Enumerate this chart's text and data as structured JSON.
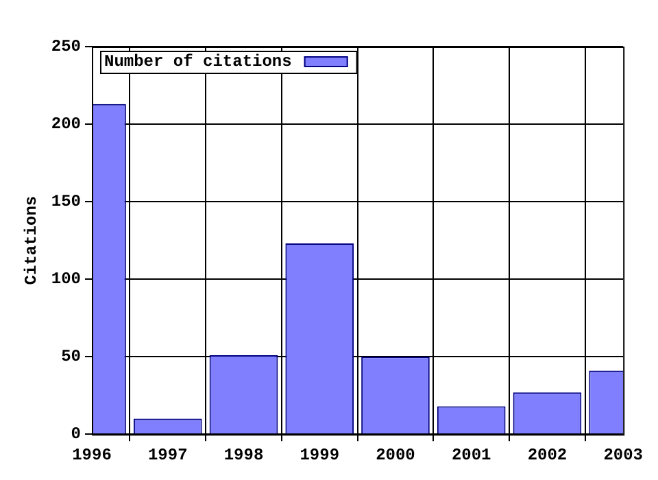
{
  "chart_data": {
    "type": "bar",
    "ylabel": "Citations",
    "x": [
      1996,
      1997,
      1998,
      1999,
      2000,
      2001,
      2002,
      2003
    ],
    "series": [
      {
        "name": "Number of citations",
        "color": "#8080ff",
        "values": [
          213,
          10,
          51,
          123,
          50,
          18,
          27,
          41
        ]
      }
    ],
    "xlim": [
      1996,
      2003
    ],
    "xticks": [
      1996,
      1997,
      1998,
      1999,
      2000,
      2001,
      2002,
      2003
    ],
    "ylim": [
      0,
      250
    ],
    "yticks": [
      0,
      50,
      100,
      150,
      200,
      250
    ],
    "grid": true,
    "legend": "top left"
  }
}
